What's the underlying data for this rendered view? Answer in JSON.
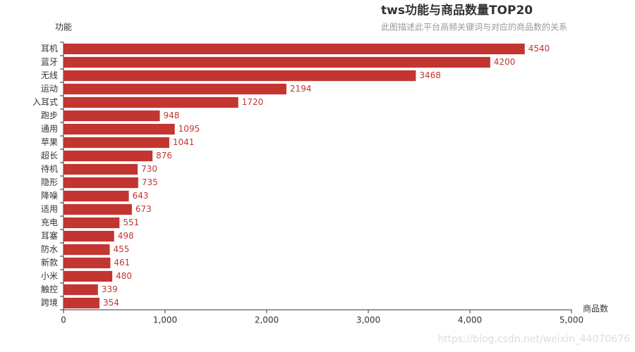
{
  "chart_data": {
    "type": "hbar",
    "title": "tws功能与商品数量TOP20",
    "subtitle": "此图描述此平台高频关键词与对应的商品数的关系",
    "y_axis_label": "功能",
    "x_axis_label": "商品数",
    "watermark": "https://blog.csdn.net/weixin_44070676",
    "color": "#c23531",
    "categories": [
      "耳机",
      "蓝牙",
      "无线",
      "运动",
      "入耳式",
      "跑步",
      "通用",
      "苹果",
      "超长",
      "待机",
      "隐形",
      "降噪",
      "适用",
      "充电",
      "耳塞",
      "防水",
      "新款",
      "小米",
      "触控",
      "跨境"
    ],
    "values": [
      4540,
      4200,
      3468,
      2194,
      1720,
      948,
      1095,
      1041,
      876,
      730,
      735,
      643,
      673,
      551,
      498,
      455,
      461,
      480,
      339,
      354
    ],
    "xlim": [
      0,
      5000
    ],
    "xticks": [
      0,
      {
        "value": 1000,
        "label": "1,000"
      },
      {
        "value": 2000,
        "label": "2,000"
      },
      {
        "value": 3000,
        "label": "3,000"
      },
      {
        "value": 4000,
        "label": "4,000"
      },
      {
        "value": 5000,
        "label": "5,000"
      }
    ]
  }
}
